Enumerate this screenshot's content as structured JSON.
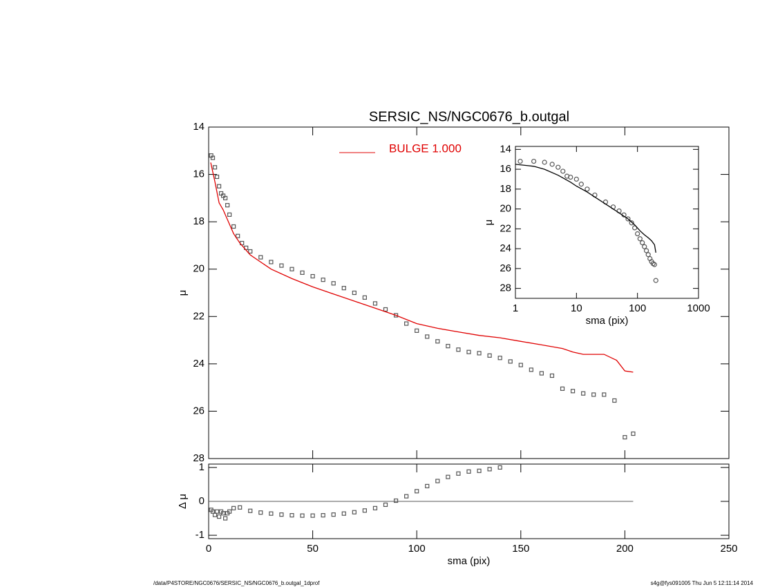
{
  "footer": {
    "left": "/data/P4STORE/NGC0676/SERSIC_NS/NGC0676_b.outgal_1dprof",
    "right": "s4g@fys091005  Thu Jun  5 12:11:14 2014"
  },
  "chart_data": [
    {
      "type": "scatter",
      "title": "SERSIC_NS/NGC0676_b.outgal",
      "ylabel": "μ",
      "xlim": [
        0,
        250
      ],
      "ylim": [
        28,
        14
      ],
      "yticks": [
        14,
        16,
        18,
        20,
        22,
        24,
        26,
        28
      ],
      "series": [
        {
          "marker": "square",
          "color": "#555555",
          "x": [
            1.2,
            2,
            3,
            4,
            5,
            6,
            7,
            8,
            9,
            10,
            12,
            14,
            16,
            18,
            20,
            25,
            30,
            35,
            40,
            45,
            50,
            55,
            60,
            65,
            70,
            75,
            80,
            85,
            90,
            95,
            100,
            105,
            110,
            115,
            120,
            125,
            130,
            135,
            140,
            145,
            150,
            155,
            160,
            165,
            170,
            175,
            180,
            185,
            190,
            195,
            200,
            204
          ],
          "values": [
            15.2,
            15.3,
            15.7,
            16.1,
            16.5,
            16.8,
            16.9,
            17.0,
            17.3,
            17.7,
            18.2,
            18.6,
            18.9,
            19.1,
            19.25,
            19.5,
            19.7,
            19.85,
            20.0,
            20.15,
            20.3,
            20.45,
            20.6,
            20.8,
            21.0,
            21.2,
            21.45,
            21.7,
            21.95,
            22.3,
            22.6,
            22.85,
            23.05,
            23.25,
            23.4,
            23.5,
            23.55,
            23.65,
            23.75,
            23.9,
            24.05,
            24.25,
            24.4,
            24.5,
            25.05,
            25.15,
            25.25,
            25.3,
            25.3,
            25.55,
            27.1,
            26.95
          ]
        },
        {
          "name": "BULGE  1.000",
          "kind": "line",
          "color": "#e00000",
          "x": [
            1,
            3,
            5,
            7,
            9,
            12,
            15,
            20,
            30,
            40,
            50,
            60,
            70,
            80,
            90,
            100,
            110,
            120,
            130,
            140,
            150,
            160,
            170,
            175,
            180,
            190,
            196,
            200,
            204
          ],
          "values": [
            15.5,
            16.3,
            17.2,
            17.5,
            17.9,
            18.5,
            18.9,
            19.4,
            20.0,
            20.4,
            20.75,
            21.05,
            21.35,
            21.65,
            21.95,
            22.3,
            22.5,
            22.65,
            22.8,
            22.9,
            23.05,
            23.2,
            23.35,
            23.5,
            23.6,
            23.6,
            23.85,
            24.3,
            24.35
          ]
        }
      ]
    },
    {
      "type": "scatter",
      "ylabel": "Δ μ",
      "xlabel": "sma (pix)",
      "zero_line": true,
      "xlim": [
        0,
        250
      ],
      "xticks": [
        0,
        50,
        100,
        150,
        200,
        250
      ],
      "ylim": [
        -1.1,
        1.1
      ],
      "yticks": [
        -1,
        0,
        1
      ],
      "series": [
        {
          "marker": "square",
          "color": "#555555",
          "x": [
            1.2,
            2,
            3,
            4,
            5,
            6,
            7,
            8,
            9,
            10,
            12,
            15,
            20,
            25,
            30,
            35,
            40,
            45,
            50,
            55,
            60,
            65,
            70,
            75,
            80,
            85,
            90,
            95,
            100,
            105,
            110,
            115,
            120,
            125,
            130,
            135,
            140
          ],
          "values": [
            -0.25,
            -0.3,
            -0.4,
            -0.3,
            -0.45,
            -0.3,
            -0.35,
            -0.5,
            -0.35,
            -0.3,
            -0.2,
            -0.18,
            -0.28,
            -0.33,
            -0.36,
            -0.39,
            -0.41,
            -0.42,
            -0.42,
            -0.41,
            -0.39,
            -0.36,
            -0.32,
            -0.27,
            -0.2,
            -0.1,
            0.02,
            0.15,
            0.3,
            0.45,
            0.6,
            0.72,
            0.82,
            0.88,
            0.9,
            0.95,
            1.0
          ]
        }
      ]
    },
    {
      "type": "scatter",
      "xscale": "log",
      "xlabel": "sma (pix)",
      "ylabel": "μ",
      "xlim": [
        1,
        1000
      ],
      "xticks": [
        1,
        10,
        100,
        1000
      ],
      "ylim": [
        29,
        13.7
      ],
      "yticks": [
        14,
        16,
        18,
        20,
        22,
        24,
        26,
        28
      ],
      "series": [
        {
          "marker": "circle",
          "color": "#555555",
          "x": [
            1.2,
            2,
            3,
            4,
            5,
            6,
            7,
            8,
            10,
            12,
            15,
            20,
            30,
            40,
            50,
            60,
            70,
            80,
            90,
            100,
            110,
            120,
            130,
            140,
            150,
            160,
            170,
            180,
            190,
            200
          ],
          "values": [
            15.2,
            15.2,
            15.3,
            15.5,
            15.8,
            16.2,
            16.7,
            16.8,
            17.0,
            17.5,
            18.0,
            18.6,
            19.3,
            19.8,
            20.2,
            20.6,
            21.0,
            21.4,
            21.9,
            22.5,
            23.0,
            23.4,
            23.8,
            24.2,
            24.6,
            25.0,
            25.3,
            25.5,
            25.6,
            27.2
          ]
        },
        {
          "kind": "line",
          "color": "#000000",
          "x": [
            1,
            2,
            3,
            5,
            8,
            10,
            15,
            20,
            30,
            50,
            70,
            90,
            110,
            130,
            150,
            170,
            190,
            200
          ],
          "values": [
            15.5,
            15.7,
            16.0,
            16.6,
            17.3,
            17.7,
            18.3,
            18.8,
            19.5,
            20.4,
            21.0,
            21.6,
            22.2,
            22.6,
            22.9,
            23.2,
            23.6,
            24.4
          ]
        }
      ]
    }
  ]
}
